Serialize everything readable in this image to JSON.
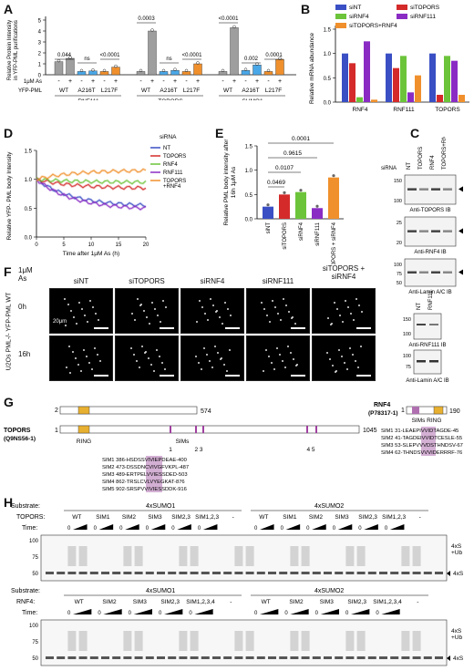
{
  "panels": {
    "A": "A",
    "B": "B",
    "C": "C",
    "D": "D",
    "E": "E",
    "F": "F",
    "G": "G",
    "H": "H"
  },
  "panelA": {
    "ylabel": "Relative Protein Intensity\nin YFP-PML purifications",
    "row1_label": "1μM As",
    "row2_label": "YFP-PML",
    "groups": [
      "RNF111",
      "TOPORS",
      "SUMO1"
    ],
    "conditions": [
      "WT",
      "A216T",
      "L217F"
    ],
    "pvalues": [
      "0.044",
      "ns",
      "<0.0001",
      "0.0003",
      "ns",
      "<0.0001",
      "<0.0001",
      "0.002",
      "0.0001"
    ],
    "signs": [
      "-",
      "+",
      "-",
      "+",
      "-",
      "+"
    ]
  },
  "panelB": {
    "ylabel": "Relative mRNA abundance",
    "legend": [
      "siNT",
      "siTOPORS",
      "siRNF4",
      "siRNF111",
      "siTOPORS+RNF4"
    ],
    "colors": [
      "#3a4fc4",
      "#d42a2a",
      "#6cc43a",
      "#8a2cc4",
      "#f0902c"
    ],
    "categories": [
      "RNF4",
      "RNF111",
      "TOPORS"
    ]
  },
  "panelC": {
    "header": "siRNA",
    "lanes": [
      "NT",
      "TOPORS",
      "RNF4",
      "TOPORS+RNF4"
    ],
    "blots": [
      "Anti-TOPORS IB",
      "Anti-RNF4 IB",
      "Anti-Lamin A/C IB"
    ],
    "markers1": [
      "150",
      "100"
    ],
    "markers2": [
      "25",
      "20"
    ],
    "markers3": [
      "100",
      "75",
      "50"
    ],
    "lanes2": [
      "NT",
      "RNF111"
    ],
    "blots2": [
      "Anti-RNF111 IB",
      "Anti-Lamin A/C IB"
    ],
    "markers4": [
      "150",
      "100"
    ],
    "markers5": [
      "100",
      "75"
    ]
  },
  "panelD": {
    "ylabel": "Relative YFP- PML body Intensity",
    "xlabel": "Time after 1μM As (h)",
    "legend_title": "siRNA",
    "legend": [
      "NT",
      "TOPORS",
      "RNF4",
      "RNF111",
      "TOPORS\n+RNF4"
    ],
    "xticks": [
      "0",
      "5",
      "10",
      "15",
      "20"
    ],
    "yticks": [
      "0.0",
      "0.5",
      "1.0",
      "1.5"
    ]
  },
  "panelE": {
    "ylabel": "Relative PML body intensity after\n16h 1μM As",
    "categories": [
      "siNT",
      "siTOPORS",
      "siRNF4",
      "siRNF111",
      "siTOPORS + siRNF4"
    ],
    "pvalues": [
      "0.0001",
      "0.9615",
      "0.0107",
      "0.0469"
    ],
    "yticks": [
      "0.0",
      "0.5",
      "1.0",
      "1.5"
    ]
  },
  "panelF": {
    "row_header": "1μM As",
    "columns": [
      "siNT",
      "siTOPORS",
      "siRNF4",
      "siRNF111",
      "siTOPORS +\nsiRNF4"
    ],
    "rows": [
      "0h",
      "16h"
    ],
    "side_label": "U2Os PML-/- YFP-PML WT",
    "scalebar": "20μm"
  },
  "panelG": {
    "topors_name": "TOPORS",
    "topors_id": "(Q9NS56-1)",
    "topors_len_short": "574",
    "topors_len": "1045",
    "ring": "RING",
    "sims": "SIMs",
    "sim_numbers": [
      "1",
      "2 3",
      "4 5"
    ],
    "rnf4_name": "RNF4",
    "rnf4_id": "(P78317-1)",
    "rnf4_len": "190",
    "rnf4_sims": "SIMs RING",
    "rnf4_start": "1",
    "topors_start": "1",
    "topors_start2": "2",
    "topors_seqs": [
      "SIM1  386-HSDSSVIVIEPDEAE-400",
      "SIM2  473-DSSDNCVIVGFVKPL-487",
      "SIM3  489-ERTPELVVIESSDED-503",
      "SIM4  862-TRSLCVLVYEGKAT-876",
      "SIM5  902-SRSPVVIVIESSDDK-916"
    ],
    "rnf4_seqs": [
      "SIM1  31-LEAEPIVVIDTAGDE-45",
      "SIM2  41-TAGDEIVVIDTCESLE-55",
      "SIM3  53-SLEPVVVDSTHNDSV-67",
      "SIM4  62-THNDSVVVIDERRRF-76"
    ]
  },
  "panelH": {
    "substrate": "Substrate:",
    "substrate1": "4xSUMO1",
    "substrate2": "4xSUMO2",
    "topors": "TOPORS:",
    "rnf4": "RNF4:",
    "time": "Time:",
    "topors_lanes": [
      "WT",
      "SIM1",
      "SIM2",
      "SIM3",
      "SIM2,3",
      "SIM1,2,3",
      "-"
    ],
    "rnf4_lanes": [
      "WT",
      "SIM2",
      "SIM3",
      "SIM2,3",
      "SIM1,2,3,4",
      "-"
    ],
    "zero": "0",
    "markers": [
      "100",
      "75",
      "50"
    ],
    "right_labels": [
      "4xS\n+Ub",
      "4xS"
    ]
  }
}
